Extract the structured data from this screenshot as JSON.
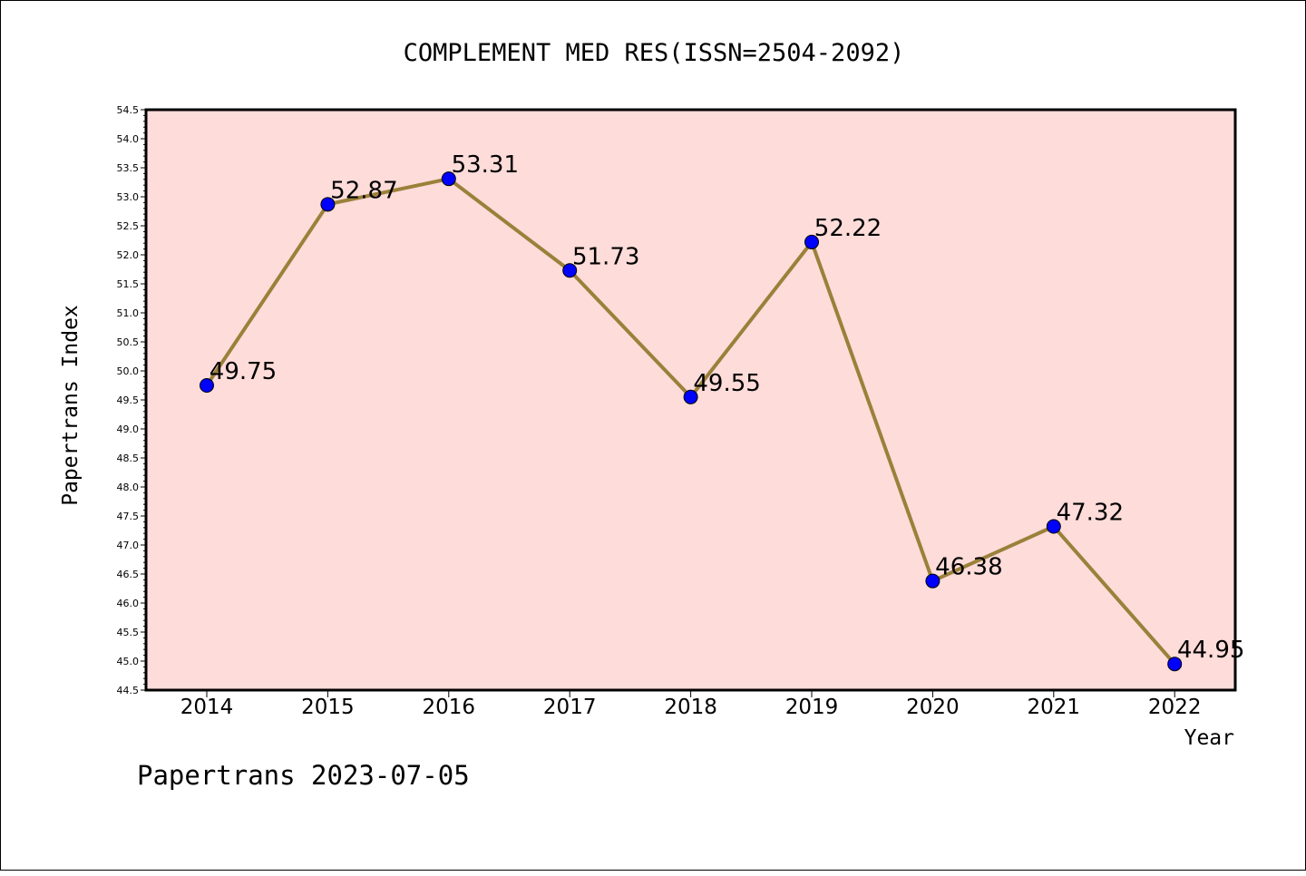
{
  "chart_data": {
    "type": "line",
    "title": "COMPLEMENT MED RES(ISSN=2504-2092)",
    "xlabel": "Year",
    "ylabel": "Papertrans Index",
    "categories": [
      "2014",
      "2015",
      "2016",
      "2017",
      "2018",
      "2019",
      "2020",
      "2021",
      "2022"
    ],
    "series": [
      {
        "values": [
          49.75,
          52.87,
          53.31,
          51.73,
          49.55,
          52.22,
          46.38,
          47.32,
          44.95
        ],
        "labels": [
          "49.75",
          "52.87",
          "53.31",
          "51.73",
          "49.55",
          "52.22",
          "46.38",
          "47.32",
          "44.95"
        ],
        "line_color": "#9b803a",
        "marker_color": "#0000ff"
      }
    ],
    "ylim": [
      44.5,
      54.5
    ],
    "yticks": [
      "44.5",
      "45.0",
      "45.5",
      "46.0",
      "46.5",
      "47.0",
      "47.5",
      "48.0",
      "48.5",
      "49.0",
      "49.5",
      "50.0",
      "50.5",
      "51.0",
      "51.5",
      "52.0",
      "52.5",
      "53.0",
      "53.5",
      "54.0",
      "54.5"
    ],
    "plot_background": "#fddcda",
    "grid": false,
    "legend": "none"
  },
  "footer": "Papertrans 2023-07-05"
}
